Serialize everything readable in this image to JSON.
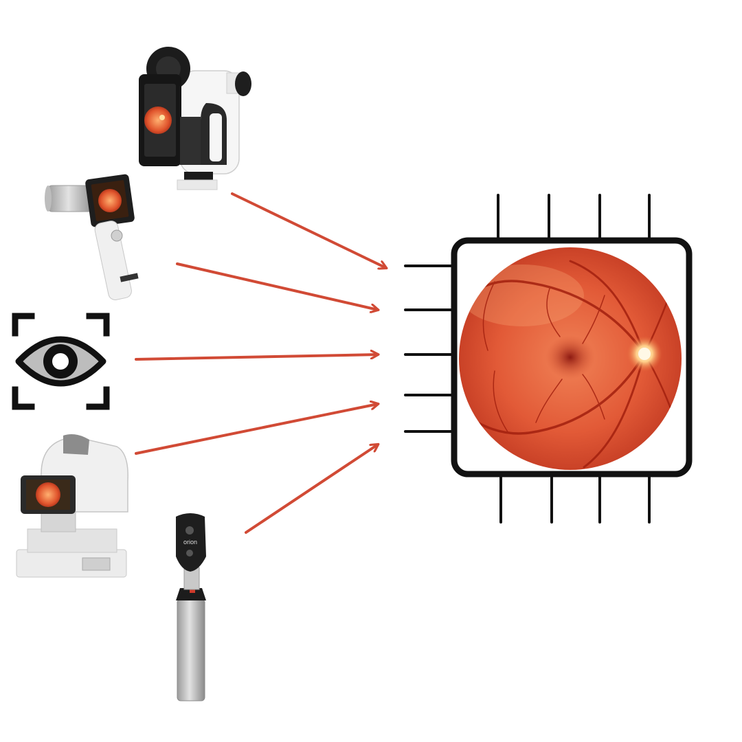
{
  "colors": {
    "background": "#ffffff",
    "arrow": "#d14a35",
    "chip_outline": "#111111",
    "retina_outer": "#c83a22",
    "retina_inner": "#f07a52",
    "device_white": "#f4f4f4",
    "device_dark": "#1c1c1c",
    "device_grey": "#b8b8b8"
  },
  "devices": [
    {
      "name": "smartphone-fundus-adapter",
      "icon": "phone-adapter-icon"
    },
    {
      "name": "handheld-fundus-camera",
      "icon": "handheld-camera-icon"
    },
    {
      "name": "eye-scan-symbol",
      "icon": "eye-scan-icon"
    },
    {
      "name": "tabletop-fundus-camera",
      "icon": "tabletop-camera-icon"
    },
    {
      "name": "ophthalmoscope",
      "icon": "ophthalmoscope-icon"
    }
  ],
  "device_labels": {
    "ophthalmoscope_brand": "orion"
  },
  "chip": {
    "icon": "chip-icon",
    "content": "retina-fundus-image"
  }
}
